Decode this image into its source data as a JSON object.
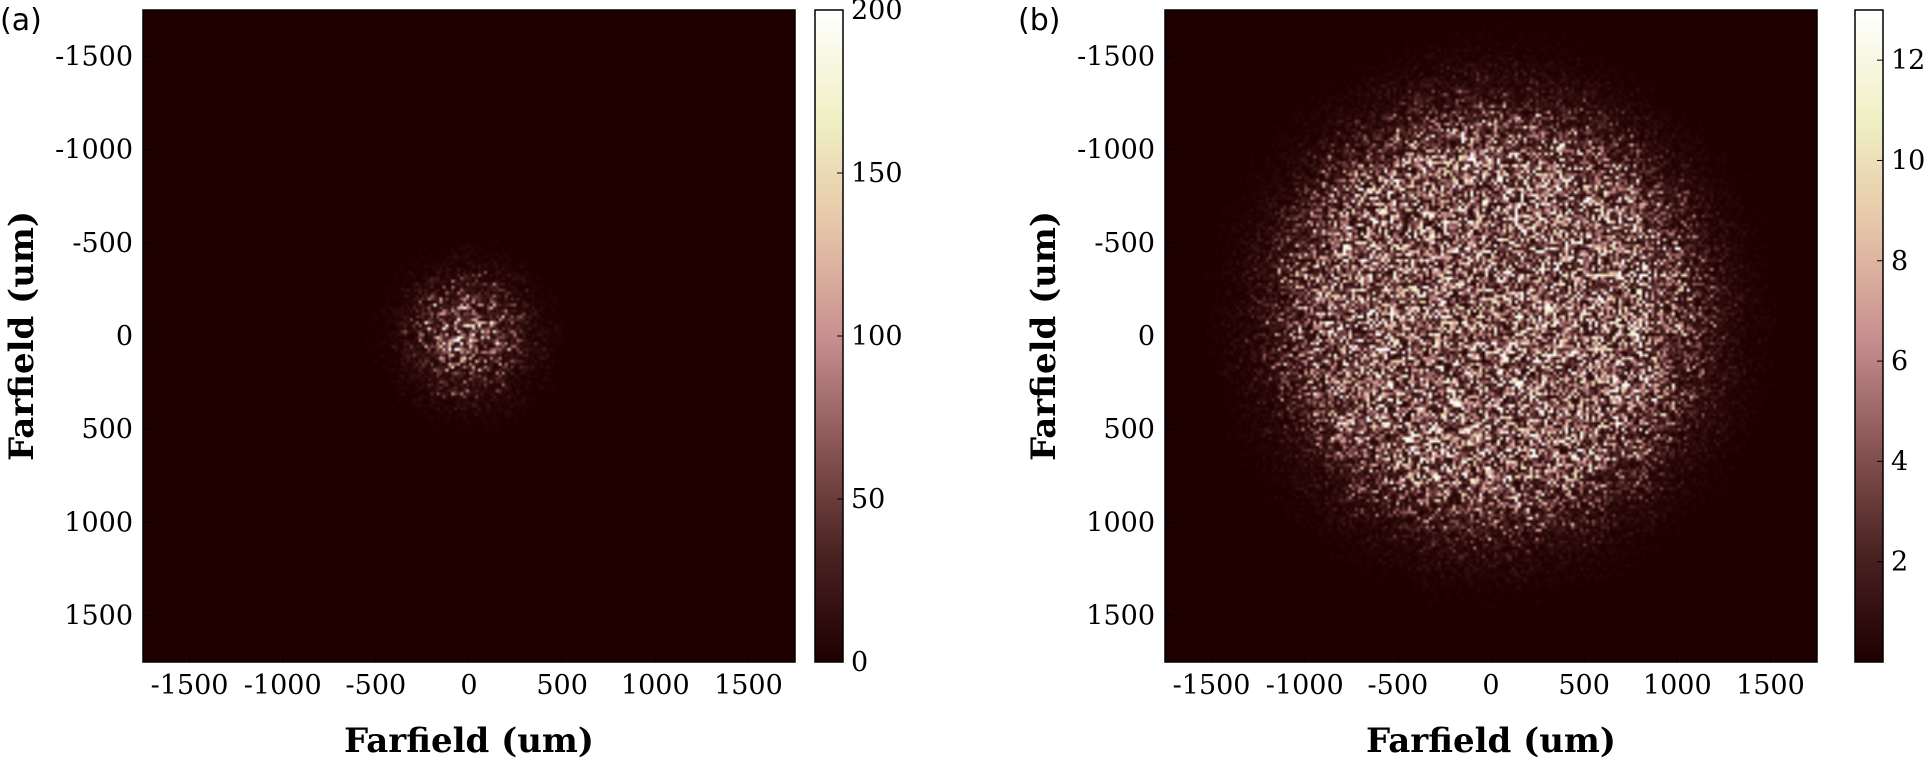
{
  "chart_data": [
    {
      "type": "heatmap",
      "panel_label": "(a)",
      "title": "",
      "xlabel": "Farfield (um)",
      "ylabel": "Farfield (um)",
      "xlim": [
        -1750,
        1750
      ],
      "ylim": [
        1750,
        -1750
      ],
      "y_axis_reversed": true,
      "xticks": [
        -1500,
        -1000,
        -500,
        0,
        500,
        1000,
        1500
      ],
      "yticks": [
        -1500,
        -1000,
        -500,
        0,
        500,
        1000,
        1500
      ],
      "colorbar": {
        "min": 0,
        "max": 200,
        "ticks": [
          0,
          50,
          100,
          150,
          200
        ]
      },
      "colormap": [
        "#1f0000",
        "#4a2222",
        "#8a5656",
        "#c99090",
        "#e6c5a8",
        "#f0f0c4",
        "#ffffff"
      ],
      "distribution": {
        "shape": "speckle-spot",
        "center": [
          0,
          0
        ],
        "radius": 400,
        "peak": 200
      },
      "grid": false,
      "legend": "none"
    },
    {
      "type": "heatmap",
      "panel_label": "(b)",
      "title": "",
      "xlabel": "Farfield (um)",
      "ylabel": "Farfield (um)",
      "xlim": [
        -1750,
        1750
      ],
      "ylim": [
        1750,
        -1750
      ],
      "y_axis_reversed": true,
      "xticks": [
        -1500,
        -1000,
        -500,
        0,
        500,
        1000,
        1500
      ],
      "yticks": [
        -1500,
        -1000,
        -500,
        0,
        500,
        1000,
        1500
      ],
      "colorbar": {
        "min": 0,
        "max": 13,
        "ticks": [
          2,
          4,
          6,
          8,
          10,
          12
        ]
      },
      "colormap": [
        "#1f0000",
        "#4a2222",
        "#8a5656",
        "#c99090",
        "#e6c5a8",
        "#f0f0c4",
        "#ffffff"
      ],
      "distribution": {
        "shape": "speckle-disk",
        "center": [
          0,
          -100
        ],
        "radius": 1350,
        "peak": 13
      },
      "grid": false,
      "legend": "none"
    }
  ]
}
